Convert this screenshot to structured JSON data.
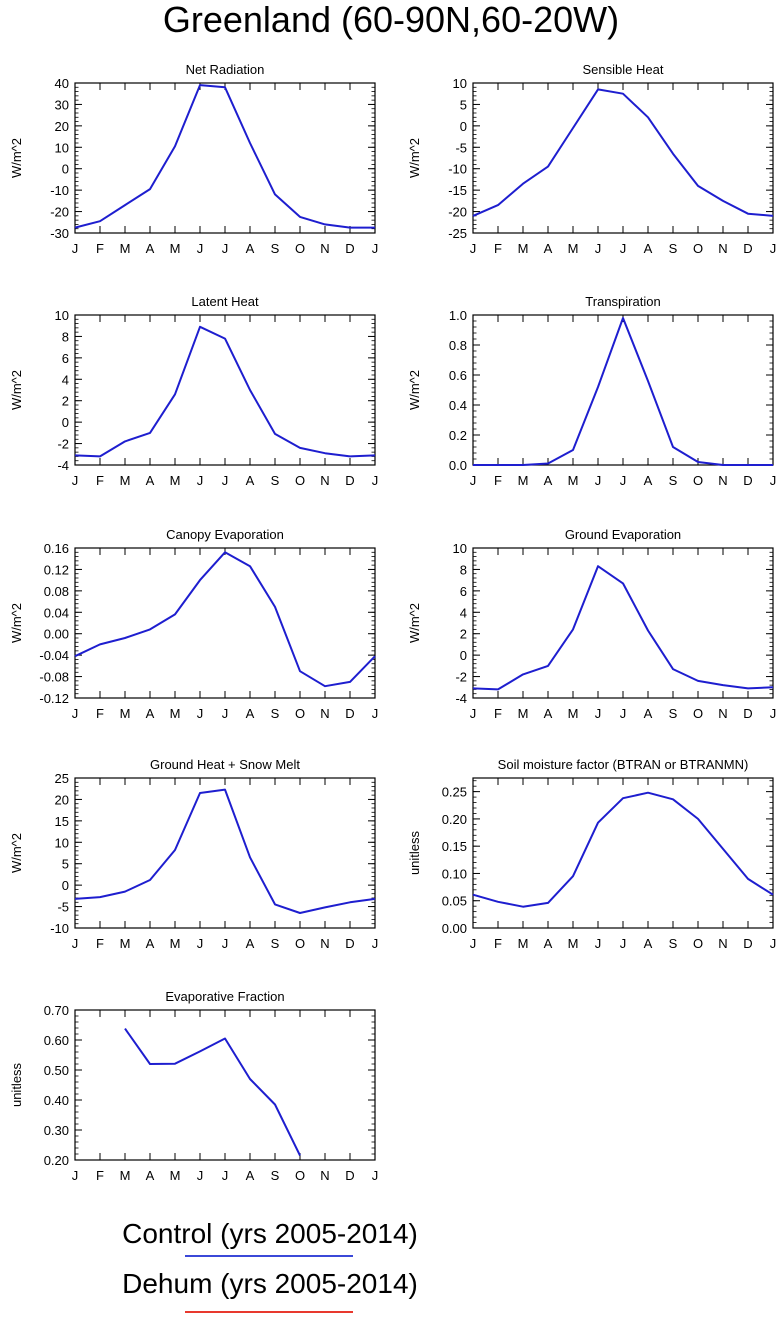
{
  "page_title": "Greenland (60-90N,60-20W)",
  "legend": {
    "items": [
      {
        "label": "Control (yrs 2005-2014)",
        "color": "#3b48d8"
      },
      {
        "label": "Dehum (yrs 2005-2014)",
        "color": "#e8392e"
      }
    ]
  },
  "months": [
    "J",
    "F",
    "M",
    "A",
    "M",
    "J",
    "J",
    "A",
    "S",
    "O",
    "N",
    "D",
    "J"
  ],
  "line_color": "#1e1ecf",
  "chart_data": [
    {
      "type": "line",
      "title": "Net Radiation",
      "ylabel": "W/m^2",
      "ylim": [
        -30,
        40
      ],
      "yticks": [
        "40",
        "30",
        "20",
        "10",
        "0",
        "-10",
        "-20",
        "-30"
      ],
      "ytick_values": [
        40,
        30,
        20,
        10,
        0,
        -10,
        -20,
        -30
      ],
      "values": [
        -27.5,
        -24.5,
        -17,
        -9.5,
        10.5,
        39,
        38,
        12,
        -12,
        -22.5,
        -26,
        -27.5,
        -27.5
      ]
    },
    {
      "type": "line",
      "title": "Sensible Heat",
      "ylabel": "W/m^2",
      "ylim": [
        -25,
        10
      ],
      "yticks": [
        "10",
        "5",
        "0",
        "-5",
        "-10",
        "-15",
        "-20",
        "-25"
      ],
      "ytick_values": [
        10,
        5,
        0,
        -5,
        -10,
        -15,
        -20,
        -25
      ],
      "values": [
        -21,
        -18.5,
        -13.5,
        -9.5,
        -0.5,
        8.5,
        7.5,
        2,
        -6.5,
        -14,
        -17.5,
        -20.5,
        -21
      ]
    },
    {
      "type": "line",
      "title": "Latent Heat",
      "ylabel": "W/m^2",
      "ylim": [
        -4,
        10
      ],
      "yticks": [
        "10",
        "8",
        "6",
        "4",
        "2",
        "0",
        "-2",
        "-4"
      ],
      "ytick_values": [
        10,
        8,
        6,
        4,
        2,
        0,
        -2,
        -4
      ],
      "values": [
        -3.1,
        -3.2,
        -1.8,
        -1,
        2.6,
        8.9,
        7.8,
        3,
        -1.1,
        -2.4,
        -2.9,
        -3.2,
        -3.1
      ]
    },
    {
      "type": "line",
      "title": "Transpiration",
      "ylabel": "W/m^2",
      "ylim": [
        0,
        1
      ],
      "yticks": [
        "1.0",
        "0.8",
        "0.6",
        "0.4",
        "0.2",
        "0.0"
      ],
      "ytick_values": [
        1,
        0.8,
        0.6,
        0.4,
        0.2,
        0
      ],
      "values": [
        0,
        0,
        0,
        0.01,
        0.1,
        0.52,
        0.98,
        0.56,
        0.12,
        0.02,
        0,
        0,
        0
      ]
    },
    {
      "type": "line",
      "title": "Canopy Evaporation",
      "ylabel": "W/m^2",
      "ylim": [
        -0.12,
        0.16
      ],
      "yticks": [
        "0.16",
        "0.12",
        "0.08",
        "0.04",
        "0.00",
        "-0.04",
        "-0.08",
        "-0.12"
      ],
      "ytick_values": [
        0.16,
        0.12,
        0.08,
        0.04,
        0,
        -0.04,
        -0.08,
        -0.12
      ],
      "values": [
        -0.042,
        -0.02,
        -0.008,
        0.008,
        0.036,
        0.1,
        0.152,
        0.126,
        0.05,
        -0.07,
        -0.098,
        -0.09,
        -0.042
      ]
    },
    {
      "type": "line",
      "title": "Ground Evaporation",
      "ylabel": "W/m^2",
      "ylim": [
        -4,
        10
      ],
      "yticks": [
        "10",
        "8",
        "6",
        "4",
        "2",
        "0",
        "-2",
        "-4"
      ],
      "ytick_values": [
        10,
        8,
        6,
        4,
        2,
        0,
        -2,
        -4
      ],
      "values": [
        -3.1,
        -3.2,
        -1.8,
        -1,
        2.4,
        8.3,
        6.7,
        2.3,
        -1.3,
        -2.4,
        -2.8,
        -3.1,
        -3
      ]
    },
    {
      "type": "line",
      "title": "Ground Heat + Snow Melt",
      "ylabel": "W/m^2",
      "ylim": [
        -10,
        25
      ],
      "yticks": [
        "25",
        "20",
        "15",
        "10",
        "5",
        "0",
        "-5",
        "-10"
      ],
      "ytick_values": [
        25,
        20,
        15,
        10,
        5,
        0,
        -5,
        -10
      ],
      "values": [
        -3.2,
        -2.8,
        -1.5,
        1.2,
        8.2,
        21.5,
        22.3,
        6.5,
        -4.5,
        -6.5,
        -5.2,
        -4,
        -3.2
      ]
    },
    {
      "type": "line",
      "title": "Soil moisture factor (BTRAN or BTRANMN)",
      "ylabel": "unitless",
      "ylim": [
        0,
        0.275
      ],
      "yticks": [
        "0.25",
        "0.20",
        "0.15",
        "0.10",
        "0.05",
        "0.00"
      ],
      "ytick_values": [
        0.25,
        0.2,
        0.15,
        0.1,
        0.05,
        0
      ],
      "values": [
        0.061,
        0.048,
        0.039,
        0.046,
        0.095,
        0.193,
        0.238,
        0.248,
        0.236,
        0.2,
        0.145,
        0.09,
        0.061
      ]
    },
    {
      "type": "line",
      "title": "Evaporative Fraction",
      "ylabel": "unitless",
      "ylim": [
        0.2,
        0.7
      ],
      "yticks": [
        "0.70",
        "0.60",
        "0.50",
        "0.40",
        "0.30",
        "0.20"
      ],
      "ytick_values": [
        0.7,
        0.6,
        0.5,
        0.4,
        0.3,
        0.2
      ],
      "values": [
        null,
        null,
        0.638,
        0.52,
        0.521,
        0.562,
        0.605,
        0.47,
        0.385,
        0.215,
        null,
        null,
        null
      ]
    }
  ]
}
